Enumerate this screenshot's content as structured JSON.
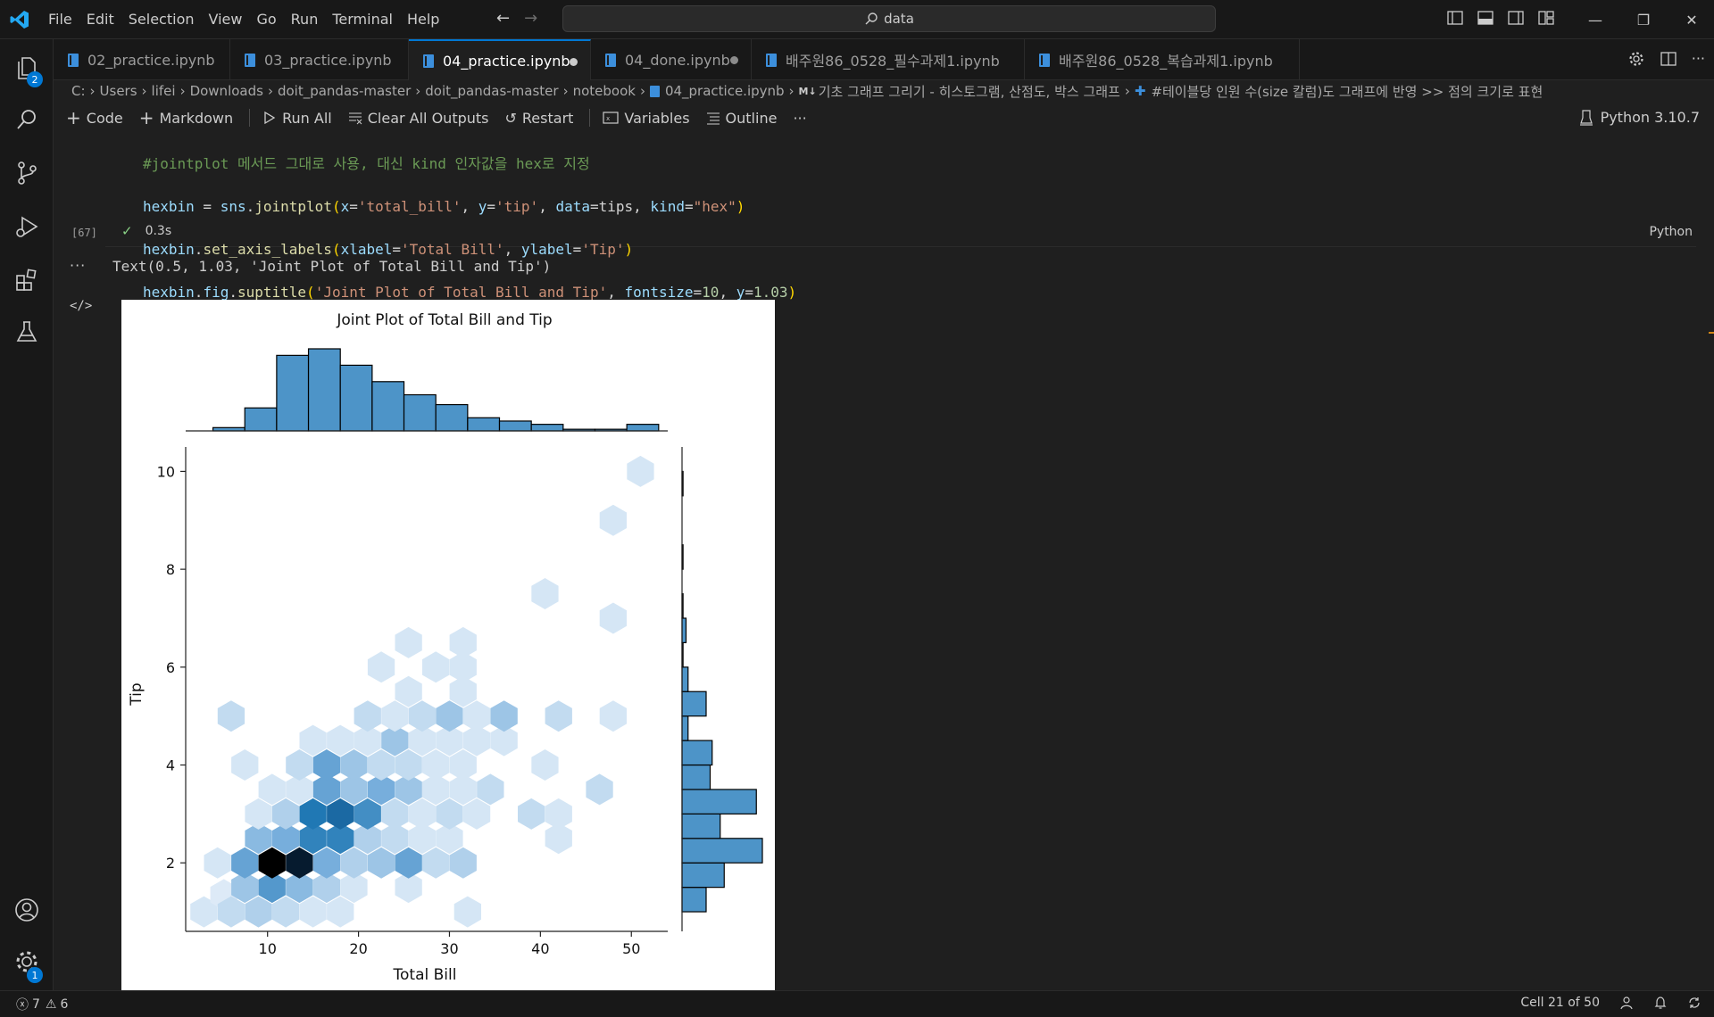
{
  "menu": [
    "File",
    "Edit",
    "Selection",
    "View",
    "Go",
    "Run",
    "Terminal",
    "Help"
  ],
  "search": {
    "text": "data"
  },
  "explorer_badge": "2",
  "settings_badge": "1",
  "tabs": [
    {
      "label": "02_practice.ipynb"
    },
    {
      "label": "03_practice.ipynb"
    },
    {
      "label": "04_practice.ipynb"
    },
    {
      "label": "04_done.ipynb"
    },
    {
      "label": "배주원86_0528_필수과제1.ipynb"
    },
    {
      "label": "배주원86_0528_복습과제1.ipynb"
    }
  ],
  "breadcrumb": {
    "items": [
      "C:",
      "Users",
      "lifei",
      "Downloads",
      "doit_pandas-master",
      "doit_pandas-master",
      "notebook"
    ],
    "file": "04_practice.ipynb",
    "section_prefix": "M↓",
    "section": "기초 그래프 그리기 - 히스토그램, 산점도, 박스 그래프",
    "subsection": "#테이블당 인원 수(size 칼럼)도 그래프에 반영 >> 점의 크기로 표현"
  },
  "toolbar": {
    "code": "Code",
    "markdown": "Markdown",
    "run_all": "Run All",
    "clear_outputs": "Clear All Outputs",
    "restart": "Restart",
    "variables": "Variables",
    "outline": "Outline",
    "more": "···",
    "kernel": "Python 3.10.7"
  },
  "cell": {
    "line1_comment": "#jointplot 메서드 그대로 사용, 대신 kind 인자값을 hex로 지정",
    "line2": {
      "var": "hexbin",
      "eq": " = ",
      "mod": "sns",
      "dot": ".",
      "fn": "jointplot",
      "open": "(",
      "a1": "x",
      "v1": "'total_bill'",
      "a2": "y",
      "v2": "'tip'",
      "a3": "data",
      "v3": "tips",
      "a4": "kind",
      "v4": "\"hex\"",
      "close": ")"
    },
    "line3": {
      "var": "hexbin",
      "dot": ".",
      "fn": "set_axis_labels",
      "open": "(",
      "a1": "xlabel",
      "v1": "'Total Bill'",
      "a2": "ylabel",
      "v2": "'Tip'",
      "close": ")"
    },
    "line4": {
      "var": "hexbin",
      "attr": "fig",
      "fn": "suptitle",
      "open": "(",
      "v1": "'Joint Plot of Total Bill and Tip'",
      "a2": "fontsize",
      "v2": "10",
      "a3": "y",
      "v3": "1.03",
      "close": ")"
    },
    "exec_count": "[67]",
    "duration": "0.3s",
    "language": "Python"
  },
  "output": {
    "text": "Text(0.5, 1.03, 'Joint Plot of Total Bill and Tip')"
  },
  "chart_data": {
    "type": "hexbin",
    "title": "Joint Plot of Total Bill and Tip",
    "xlabel": "Total Bill",
    "ylabel": "Tip",
    "xlim": [
      1,
      54
    ],
    "ylim": [
      0.6,
      10.5
    ],
    "xticks": [
      10,
      20,
      30,
      40,
      50
    ],
    "yticks": [
      2,
      4,
      6,
      8,
      10
    ],
    "hexes": [
      {
        "x": 3,
        "y": 1.0,
        "count": 1
      },
      {
        "x": 5.2,
        "y": 1.35,
        "count": 0.6
      },
      {
        "x": 6,
        "y": 1.0,
        "count": 2
      },
      {
        "x": 9,
        "y": 1.0,
        "count": 3
      },
      {
        "x": 12,
        "y": 1.0,
        "count": 2
      },
      {
        "x": 15,
        "y": 1.0,
        "count": 1
      },
      {
        "x": 18,
        "y": 1.0,
        "count": 1
      },
      {
        "x": 32,
        "y": 1.0,
        "count": 1
      },
      {
        "x": 7.5,
        "y": 1.5,
        "count": 4
      },
      {
        "x": 10.5,
        "y": 1.5,
        "count": 8
      },
      {
        "x": 13.5,
        "y": 1.5,
        "count": 5
      },
      {
        "x": 16.5,
        "y": 1.5,
        "count": 3
      },
      {
        "x": 19.5,
        "y": 1.5,
        "count": 1
      },
      {
        "x": 25.5,
        "y": 1.5,
        "count": 1
      },
      {
        "x": 4.5,
        "y": 2.0,
        "count": 1
      },
      {
        "x": 7.5,
        "y": 2.0,
        "count": 7
      },
      {
        "x": 10.5,
        "y": 2.0,
        "count": 17
      },
      {
        "x": 13.5,
        "y": 2.0,
        "count": 16
      },
      {
        "x": 16.5,
        "y": 2.0,
        "count": 6
      },
      {
        "x": 19.5,
        "y": 2.0,
        "count": 3
      },
      {
        "x": 22.5,
        "y": 2.0,
        "count": 4
      },
      {
        "x": 25.5,
        "y": 2.0,
        "count": 7
      },
      {
        "x": 28.5,
        "y": 2.0,
        "count": 2
      },
      {
        "x": 31.5,
        "y": 2.0,
        "count": 3
      },
      {
        "x": 9,
        "y": 2.5,
        "count": 5
      },
      {
        "x": 12,
        "y": 2.5,
        "count": 6
      },
      {
        "x": 15,
        "y": 2.5,
        "count": 10
      },
      {
        "x": 18,
        "y": 2.5,
        "count": 10
      },
      {
        "x": 21,
        "y": 2.5,
        "count": 3
      },
      {
        "x": 24,
        "y": 2.5,
        "count": 2
      },
      {
        "x": 27,
        "y": 2.5,
        "count": 1
      },
      {
        "x": 30,
        "y": 2.5,
        "count": 1
      },
      {
        "x": 42,
        "y": 2.5,
        "count": 1
      },
      {
        "x": 9,
        "y": 3.0,
        "count": 1
      },
      {
        "x": 12,
        "y": 3.0,
        "count": 3
      },
      {
        "x": 15,
        "y": 3.0,
        "count": 11
      },
      {
        "x": 18,
        "y": 3.0,
        "count": 12
      },
      {
        "x": 21,
        "y": 3.0,
        "count": 9
      },
      {
        "x": 24,
        "y": 3.0,
        "count": 2
      },
      {
        "x": 27,
        "y": 3.0,
        "count": 1
      },
      {
        "x": 30,
        "y": 3.0,
        "count": 2
      },
      {
        "x": 33,
        "y": 3.0,
        "count": 1
      },
      {
        "x": 39,
        "y": 3.0,
        "count": 2
      },
      {
        "x": 42,
        "y": 3.0,
        "count": 1
      },
      {
        "x": 10.5,
        "y": 3.5,
        "count": 1
      },
      {
        "x": 13.5,
        "y": 3.5,
        "count": 1
      },
      {
        "x": 16.5,
        "y": 3.5,
        "count": 7
      },
      {
        "x": 19.5,
        "y": 3.5,
        "count": 4
      },
      {
        "x": 22.5,
        "y": 3.5,
        "count": 6
      },
      {
        "x": 25.5,
        "y": 3.5,
        "count": 4
      },
      {
        "x": 28.5,
        "y": 3.5,
        "count": 1
      },
      {
        "x": 31.5,
        "y": 3.5,
        "count": 1
      },
      {
        "x": 34.5,
        "y": 3.5,
        "count": 2
      },
      {
        "x": 46.5,
        "y": 3.5,
        "count": 2
      },
      {
        "x": 7.5,
        "y": 4.0,
        "count": 1
      },
      {
        "x": 13.5,
        "y": 4.0,
        "count": 2
      },
      {
        "x": 16.5,
        "y": 4.0,
        "count": 7
      },
      {
        "x": 19.5,
        "y": 4.0,
        "count": 4
      },
      {
        "x": 22.5,
        "y": 4.0,
        "count": 2
      },
      {
        "x": 25.5,
        "y": 4.0,
        "count": 2
      },
      {
        "x": 28.5,
        "y": 4.0,
        "count": 1
      },
      {
        "x": 31.5,
        "y": 4.0,
        "count": 1
      },
      {
        "x": 40.5,
        "y": 4.0,
        "count": 1
      },
      {
        "x": 15,
        "y": 4.5,
        "count": 1
      },
      {
        "x": 18,
        "y": 4.5,
        "count": 1
      },
      {
        "x": 21,
        "y": 4.5,
        "count": 1
      },
      {
        "x": 24,
        "y": 4.5,
        "count": 4
      },
      {
        "x": 27,
        "y": 4.5,
        "count": 1
      },
      {
        "x": 30,
        "y": 4.5,
        "count": 1
      },
      {
        "x": 33,
        "y": 4.5,
        "count": 1
      },
      {
        "x": 36,
        "y": 4.5,
        "count": 1
      },
      {
        "x": 6,
        "y": 5.0,
        "count": 2
      },
      {
        "x": 21,
        "y": 5.0,
        "count": 2
      },
      {
        "x": 24,
        "y": 5.0,
        "count": 1
      },
      {
        "x": 27,
        "y": 5.0,
        "count": 2
      },
      {
        "x": 30,
        "y": 5.0,
        "count": 4
      },
      {
        "x": 33,
        "y": 5.0,
        "count": 1
      },
      {
        "x": 36,
        "y": 5.0,
        "count": 4
      },
      {
        "x": 42,
        "y": 5.0,
        "count": 2
      },
      {
        "x": 48,
        "y": 5.0,
        "count": 1
      },
      {
        "x": 25.5,
        "y": 5.5,
        "count": 1
      },
      {
        "x": 31.5,
        "y": 5.5,
        "count": 1
      },
      {
        "x": 22.5,
        "y": 6.0,
        "count": 1
      },
      {
        "x": 28.5,
        "y": 6.0,
        "count": 1
      },
      {
        "x": 31.5,
        "y": 6.0,
        "count": 1
      },
      {
        "x": 25.5,
        "y": 6.5,
        "count": 1
      },
      {
        "x": 31.5,
        "y": 6.5,
        "count": 1
      },
      {
        "x": 40.5,
        "y": 7.5,
        "count": 1
      },
      {
        "x": 48,
        "y": 7.0,
        "count": 1
      },
      {
        "x": 48,
        "y": 9.0,
        "count": 1
      },
      {
        "x": 51,
        "y": 10.0,
        "count": 1
      }
    ],
    "marginal_x": {
      "bins": [
        [
          4,
          7.5
        ],
        [
          7.5,
          11
        ],
        [
          11,
          14.5
        ],
        [
          14.5,
          18
        ],
        [
          18,
          21.5
        ],
        [
          21.5,
          25
        ],
        [
          25,
          28.5
        ],
        [
          28.5,
          32
        ],
        [
          32,
          35.5
        ],
        [
          35.5,
          39
        ],
        [
          39,
          42.5
        ],
        [
          42.5,
          46
        ],
        [
          46,
          49.5
        ],
        [
          49.5,
          53
        ]
      ],
      "counts": [
        1,
        7,
        23,
        25,
        20,
        15,
        11,
        8,
        4,
        3,
        2,
        0.5,
        0.5,
        2
      ]
    },
    "marginal_y": {
      "bins": [
        [
          1,
          1.5
        ],
        [
          1.5,
          2
        ],
        [
          2,
          2.5
        ],
        [
          2.5,
          3
        ],
        [
          3,
          3.5
        ],
        [
          3.5,
          4
        ],
        [
          4,
          4.5
        ],
        [
          4.5,
          5
        ],
        [
          5,
          5.5
        ],
        [
          5.5,
          6
        ],
        [
          6,
          6.5
        ],
        [
          6.5,
          7
        ],
        [
          7,
          7.5
        ],
        [
          8,
          8.5
        ],
        [
          9.5,
          10
        ]
      ],
      "counts": [
        12,
        21,
        40,
        19,
        37,
        14,
        15,
        3,
        12,
        3,
        0.5,
        2,
        0.5,
        0.5,
        0.5
      ]
    },
    "colors": {
      "hex_base": "#1f77b4",
      "bar_fill": "#4d94c8",
      "bar_edge": "#000000"
    }
  },
  "status": {
    "errors": "7",
    "warnings": "6",
    "cell_info": "Cell 21 of 50"
  }
}
